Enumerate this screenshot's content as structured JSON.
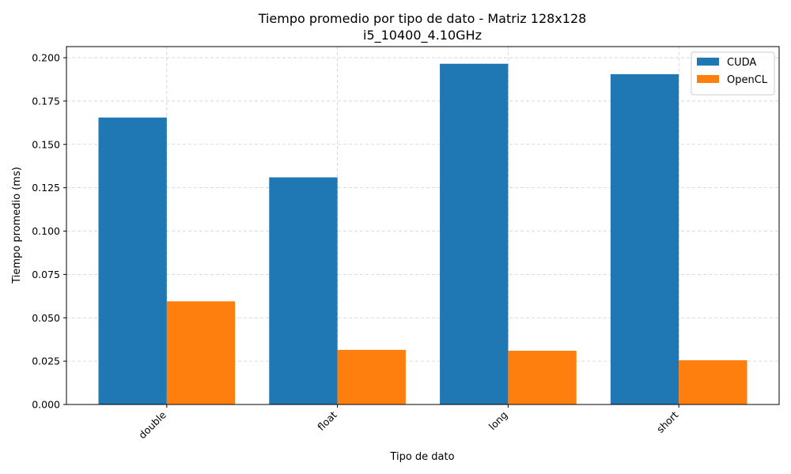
{
  "chart_data": {
    "type": "bar",
    "title": "Tiempo promedio por tipo de dato - Matriz 128x128",
    "subtitle": "i5_10400_4.10GHz",
    "xlabel": "Tipo de dato",
    "ylabel": "Tiempo promedio (ms)",
    "categories": [
      "double",
      "float",
      "long",
      "short"
    ],
    "series": [
      {
        "name": "CUDA",
        "color": "#1f77b4",
        "values": [
          0.1655,
          0.131,
          0.1965,
          0.1905
        ]
      },
      {
        "name": "OpenCL",
        "color": "#ff7f0e",
        "values": [
          0.0595,
          0.0315,
          0.031,
          0.0255
        ]
      }
    ],
    "ylim": [
      0,
      0.2064
    ],
    "yticks": [
      "0.000",
      "0.025",
      "0.050",
      "0.075",
      "0.100",
      "0.125",
      "0.150",
      "0.175",
      "0.200"
    ],
    "grid": true,
    "legend_position": "top-right",
    "xtick_rotation": 45
  }
}
